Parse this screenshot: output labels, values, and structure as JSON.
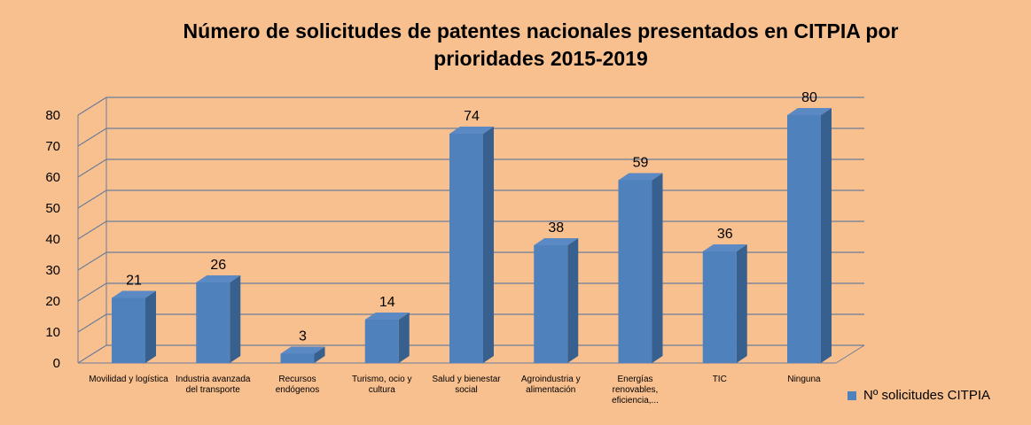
{
  "chart_data": {
    "type": "bar3d",
    "title": "Número de solicitudes de patentes nacionales presentados en CITPIA por prioridades 2015-2019",
    "categories": [
      "Movilidad y logística",
      "Industria avanzada del transporte",
      "Recursos endógenos",
      "Turismo, ocio y cultura",
      "Salud y bienestar social",
      "Agroindustria y alimentación",
      "Energías renovables, eficiencia,...",
      "TIC",
      "Ninguna"
    ],
    "series": [
      {
        "name": "Nº solicitudes CITPIA",
        "color": "#4f81bd",
        "values": [
          21,
          26,
          3,
          14,
          74,
          38,
          59,
          36,
          80
        ]
      }
    ],
    "ylim": [
      0,
      80
    ],
    "yticks": [
      0,
      10,
      20,
      30,
      40,
      50,
      60,
      70,
      80
    ],
    "grid": true,
    "legend": "right"
  }
}
